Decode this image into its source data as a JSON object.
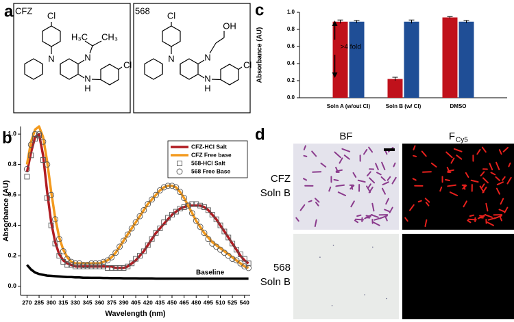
{
  "panel_a": {
    "panel": "a",
    "molecules": [
      {
        "name": "CFZ",
        "atoms": [
          "Cl",
          "N",
          "N",
          "N",
          "H",
          "H₃C",
          "CH₃",
          "Cl"
        ]
      },
      {
        "name": "568",
        "atoms": [
          "Cl",
          "N",
          "N",
          "N",
          "H",
          "OH",
          "Cl"
        ]
      }
    ]
  },
  "chart_data": [
    {
      "type": "bar",
      "panel": "c",
      "ylabel": "Absorbance (AU)",
      "categories": [
        "Soln A (w/out Cl)",
        "Soln B (w/ Cl)",
        "DMSO"
      ],
      "series": [
        {
          "color": "#c0111b",
          "values": [
            0.89,
            0.22,
            0.94
          ],
          "errors": [
            0.02,
            0.02,
            0.01
          ]
        },
        {
          "color": "#1f4e96",
          "values": [
            0.89,
            0.89,
            0.89
          ],
          "errors": [
            0.015,
            0.02,
            0.015
          ]
        }
      ],
      "ylim": [
        0,
        1.0
      ],
      "yticks": [
        {
          "value": 0,
          "label": "0.0"
        },
        0.2,
        0.4,
        0.6,
        0.8,
        {
          "value": 1,
          "label": "1.0"
        }
      ],
      "annotation": ">4 fold"
    },
    {
      "type": "line",
      "panel": "b",
      "xlabel": "Wavelength (nm)",
      "ylabel": "Absorbance (AU)",
      "x": [
        270,
        275,
        280,
        285,
        290,
        295,
        300,
        305,
        310,
        315,
        320,
        325,
        330,
        335,
        340,
        345,
        350,
        355,
        360,
        365,
        370,
        375,
        380,
        385,
        390,
        395,
        400,
        405,
        410,
        415,
        420,
        425,
        430,
        435,
        440,
        445,
        450,
        455,
        460,
        465,
        470,
        475,
        480,
        485,
        490,
        495,
        500,
        505,
        510,
        515,
        520,
        525,
        530,
        535,
        540,
        545
      ],
      "series": [
        {
          "name": "CFZ-HCl Salt",
          "color": "#b01c22",
          "style": "line",
          "values": [
            0.75,
            0.88,
            0.98,
            1.0,
            0.86,
            0.62,
            0.42,
            0.29,
            0.21,
            0.17,
            0.15,
            0.14,
            0.13,
            0.13,
            0.13,
            0.13,
            0.13,
            0.13,
            0.13,
            0.13,
            0.13,
            0.13,
            0.12,
            0.12,
            0.12,
            0.13,
            0.15,
            0.17,
            0.2,
            0.23,
            0.27,
            0.31,
            0.35,
            0.38,
            0.41,
            0.44,
            0.47,
            0.49,
            0.51,
            0.52,
            0.53,
            0.53,
            0.53,
            0.53,
            0.52,
            0.5,
            0.47,
            0.44,
            0.4,
            0.36,
            0.32,
            0.28,
            0.24,
            0.2,
            0.17,
            0.15
          ]
        },
        {
          "name": "CFZ Free base",
          "color": "#f39a1e",
          "style": "line",
          "values": [
            0.8,
            0.95,
            1.03,
            1.05,
            0.98,
            0.82,
            0.62,
            0.45,
            0.32,
            0.24,
            0.19,
            0.16,
            0.15,
            0.15,
            0.15,
            0.15,
            0.15,
            0.15,
            0.15,
            0.16,
            0.17,
            0.19,
            0.22,
            0.26,
            0.3,
            0.34,
            0.38,
            0.42,
            0.46,
            0.5,
            0.54,
            0.57,
            0.6,
            0.63,
            0.65,
            0.66,
            0.66,
            0.65,
            0.62,
            0.58,
            0.53,
            0.48,
            0.43,
            0.39,
            0.35,
            0.32,
            0.29,
            0.27,
            0.25,
            0.23,
            0.21,
            0.19,
            0.17,
            0.15,
            0.13,
            0.12
          ]
        },
        {
          "name": "568-HCl Salt",
          "color": "#555555",
          "style": "square",
          "values": [
            0.72,
            0.86,
            0.97,
            0.99,
            0.83,
            0.58,
            0.4,
            0.28,
            0.2,
            0.16,
            0.14,
            0.14,
            0.13,
            0.13,
            0.13,
            0.13,
            0.13,
            0.13,
            0.13,
            0.13,
            0.12,
            0.12,
            0.12,
            0.12,
            0.12,
            0.13,
            0.15,
            0.18,
            0.2,
            0.23,
            0.27,
            0.31,
            0.35,
            0.38,
            0.42,
            0.45,
            0.47,
            0.49,
            0.51,
            0.52,
            0.53,
            0.54,
            0.54,
            0.53,
            0.52,
            0.5,
            0.47,
            0.44,
            0.4,
            0.36,
            0.32,
            0.28,
            0.24,
            0.21,
            0.18,
            0.15
          ]
        },
        {
          "name": "568 Free Base",
          "color": "#555555",
          "style": "circle",
          "values": [
            0.77,
            0.93,
            1.0,
            1.0,
            0.95,
            0.8,
            0.6,
            0.44,
            0.31,
            0.23,
            0.18,
            0.16,
            0.15,
            0.15,
            0.14,
            0.14,
            0.15,
            0.15,
            0.15,
            0.16,
            0.17,
            0.19,
            0.22,
            0.26,
            0.3,
            0.34,
            0.38,
            0.42,
            0.46,
            0.5,
            0.54,
            0.57,
            0.6,
            0.63,
            0.65,
            0.66,
            0.66,
            0.65,
            0.62,
            0.58,
            0.53,
            0.48,
            0.43,
            0.39,
            0.35,
            0.31,
            0.28,
            0.26,
            0.24,
            0.22,
            0.2,
            0.18,
            0.17,
            0.15,
            0.13,
            0.12
          ]
        }
      ],
      "baseline": {
        "label": "Baseline",
        "color": "#000000",
        "values": [
          0.14,
          0.11,
          0.09,
          0.08,
          0.075,
          0.07,
          0.068,
          0.066,
          0.064,
          0.062,
          0.06,
          0.06,
          0.058,
          0.058,
          0.056,
          0.056,
          0.055,
          0.055,
          0.055,
          0.054,
          0.054,
          0.053,
          0.053,
          0.053,
          0.052,
          0.052,
          0.052,
          0.052,
          0.051,
          0.051,
          0.051,
          0.051,
          0.05,
          0.05,
          0.05,
          0.05,
          0.05,
          0.05,
          0.05,
          0.05,
          0.05,
          0.05,
          0.05,
          0.05,
          0.05,
          0.05,
          0.05,
          0.05,
          0.05,
          0.05,
          0.05,
          0.05,
          0.05,
          0.05,
          0.05,
          0.05
        ]
      },
      "xlim": [
        262,
        547
      ],
      "xticks": [
        270,
        285,
        300,
        315,
        330,
        345,
        360,
        375,
        390,
        405,
        420,
        435,
        450,
        465,
        480,
        495,
        510,
        525,
        540
      ],
      "ylim": [
        -0.06,
        1.05
      ],
      "yticks": [
        {
          "value": 0,
          "label": "0.0"
        },
        0.2,
        0.4,
        0.6,
        0.8,
        {
          "value": 1,
          "label": "1.0"
        }
      ]
    }
  ],
  "panel_d": {
    "panel": "d",
    "columns": [
      {
        "text": "BF"
      },
      {
        "text": "F",
        "sub": "Cy5"
      }
    ],
    "rows": [
      [
        "CFZ",
        "Soln B"
      ],
      [
        "568",
        "Soln B"
      ]
    ]
  }
}
